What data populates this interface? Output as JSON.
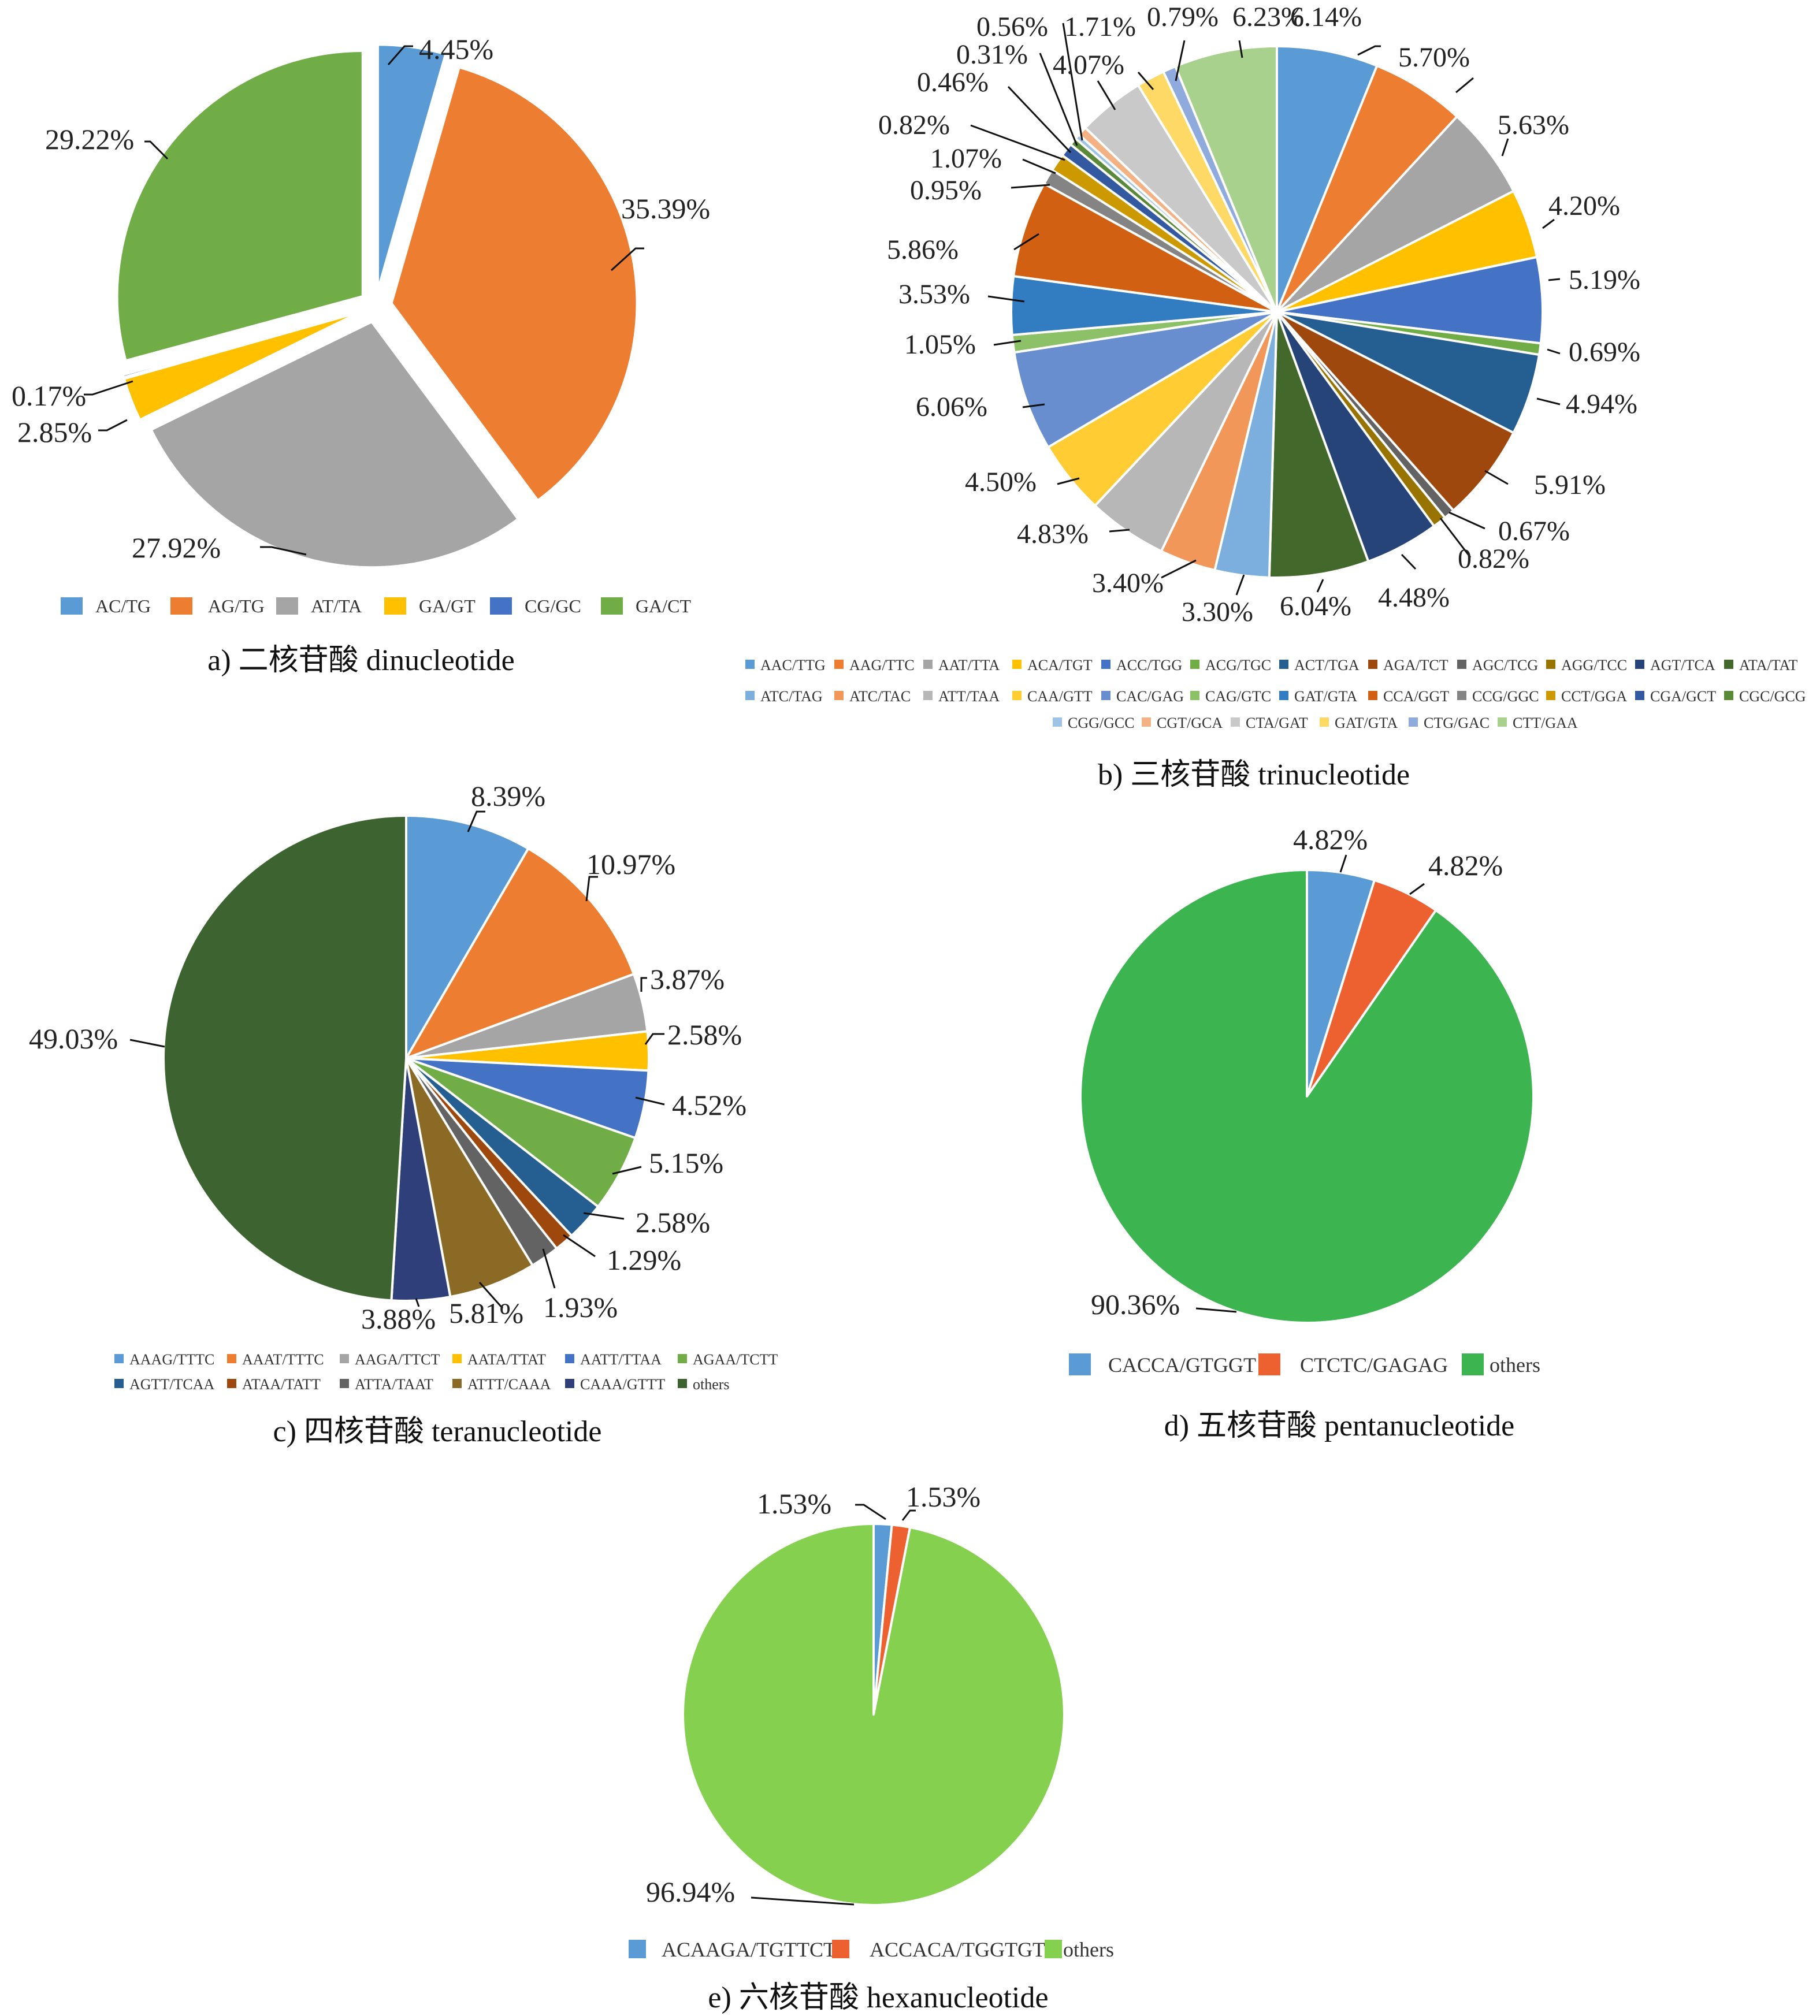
{
  "chart_data": [
    {
      "type": "pie",
      "id": "di",
      "title": "a) 二核苷酸 dinucleotide",
      "labels": [
        "AC/TG",
        "AG/TG",
        "AT/TA",
        "GA/GT",
        "CG/GC",
        "GA/CT"
      ],
      "values": [
        4.45,
        35.39,
        27.92,
        2.85,
        0.17,
        29.22
      ],
      "value_labels": [
        "4.45%",
        "35.39%",
        "27.92%",
        "2.85%",
        "0.17%",
        "29.22%"
      ],
      "colors": [
        "#5b9bd5",
        "#ed7d31",
        "#a5a5a5",
        "#ffc000",
        "#4472c4",
        "#70ad47"
      ],
      "exploded": true,
      "legend": "bottom"
    },
    {
      "type": "pie",
      "id": "tri",
      "title": "b) 三核苷酸 trinucleotide",
      "labels": [
        "AAC/TTG",
        "AAG/TTC",
        "AAT/TTA",
        "ACA/TGT",
        "ACC/TGG",
        "ACG/TGC",
        "ACT/TGA",
        "AGA/TCT",
        "AGC/TCG",
        "AGG/TCC",
        "AGT/TCA",
        "ATA/TAT",
        "ATC/TAG",
        "ATC/TAC",
        "ATT/TAA",
        "CAA/GTT",
        "CAC/GAG",
        "CAG/GTC",
        "GAT/GTA",
        "CCA/GGT",
        "CCG/GGC",
        "CCT/GGA",
        "CGA/GCT",
        "CGC/GCG",
        "CGG/GCC",
        "CGT/GCA",
        "CTA/GAT",
        "GAT/GTA",
        "CTG/GAC",
        "CTT/GAA"
      ],
      "values": [
        6.14,
        5.7,
        5.63,
        4.2,
        5.19,
        0.69,
        4.94,
        5.91,
        0.67,
        0.82,
        4.48,
        6.04,
        3.3,
        3.4,
        4.83,
        4.5,
        6.06,
        1.05,
        3.53,
        5.86,
        0.95,
        1.07,
        0.82,
        0.46,
        0.31,
        0.56,
        4.07,
        1.71,
        0.79,
        6.23
      ],
      "value_labels": [
        "6.14%",
        "5.70%",
        "5.63%",
        "4.20%",
        "5.19%",
        "0.69%",
        "4.94%",
        "5.91%",
        "0.67%",
        "0.82%",
        "4.48%",
        "6.04%",
        "3.30%",
        "3.40%",
        "4.83%",
        "4.50%",
        "6.06%",
        "1.05%",
        "3.53%",
        "5.86%",
        "0.95%",
        "1.07%",
        "0.82%",
        "0.46%",
        "0.31%",
        "0.56%",
        "4.07%",
        "1.71%",
        "0.79%",
        "6.23%"
      ],
      "colors": [
        "#5b9bd5",
        "#ed7d31",
        "#a5a5a5",
        "#ffc000",
        "#4472c4",
        "#70ad47",
        "#255e91",
        "#9e480e",
        "#636363",
        "#997300",
        "#264478",
        "#43682b",
        "#7cafdd",
        "#f1975a",
        "#b7b7b7",
        "#ffcd33",
        "#698ed0",
        "#8cc168",
        "#327dc2",
        "#d26012",
        "#848484",
        "#cc9a00",
        "#335aa1",
        "#5a8a39",
        "#9dc3e6",
        "#f4b183",
        "#c9c9c9",
        "#ffd966",
        "#8faadc",
        "#a9d18e"
      ],
      "legend": "bottom"
    },
    {
      "type": "pie",
      "id": "tetra",
      "title": "c) 四核苷酸 teranucleotide",
      "labels": [
        "AAAG/TTTC",
        "AAAT/TTTC",
        "AAGA/TTCT",
        "AATA/TTAT",
        "AATT/TTAA",
        "AGAA/TCTT",
        "AGTT/TCAA",
        "ATAA/TATT",
        "ATTA/TAAT",
        "ATTT/CAAA",
        "CAAA/GTTT",
        "others"
      ],
      "values": [
        8.39,
        10.97,
        3.87,
        2.58,
        4.52,
        5.15,
        2.58,
        1.29,
        1.93,
        5.81,
        3.88,
        49.03
      ],
      "value_labels": [
        "8.39%",
        "10.97%",
        "3.87%",
        "2.58%",
        "4.52%",
        "5.15%",
        "2.58%",
        "1.29%",
        "1.93%",
        "5.81%",
        "3.88%",
        "49.03%"
      ],
      "colors": [
        "#5b9bd5",
        "#ed7d31",
        "#a5a5a5",
        "#ffc000",
        "#4472c4",
        "#70ad47",
        "#255e91",
        "#9e480e",
        "#636363",
        "#8a6a25",
        "#2f3f7a",
        "#3d6330"
      ],
      "legend": "bottom"
    },
    {
      "type": "pie",
      "id": "penta",
      "title": "d) 五核苷酸 pentanucleotide",
      "labels": [
        "CACCA/GTGGT",
        "CTCTC/GAGAG",
        "others"
      ],
      "values": [
        4.82,
        4.82,
        90.36
      ],
      "value_labels": [
        "4.82%",
        "4.82%",
        "90.36%"
      ],
      "colors": [
        "#5b9bd5",
        "#ed6030",
        "#3cb550"
      ],
      "legend": "bottom"
    },
    {
      "type": "pie",
      "id": "hexa",
      "title": "e) 六核苷酸 hexanucleotide",
      "labels": [
        "ACAAGA/TGTTCT",
        "ACCACA/TGGTGT",
        "others"
      ],
      "values": [
        1.53,
        1.53,
        96.94
      ],
      "value_labels": [
        "1.53%",
        "1.53%",
        "96.94%"
      ],
      "colors": [
        "#5b9bd5",
        "#ed6030",
        "#86d050"
      ],
      "legend": "bottom"
    }
  ]
}
